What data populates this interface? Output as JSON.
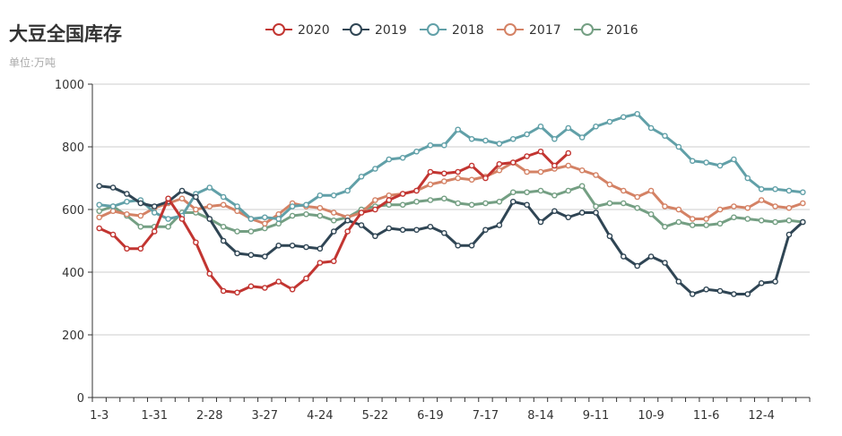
{
  "chart_data": {
    "type": "line",
    "title": "大豆全国库存",
    "subtitle": "单位:万吨",
    "ylim": [
      0,
      1000
    ],
    "yticks": [
      0,
      200,
      400,
      600,
      800,
      1000
    ],
    "x_labels": [
      "1-3",
      "1-31",
      "2-28",
      "3-27",
      "4-24",
      "5-22",
      "6-19",
      "7-17",
      "8-14",
      "9-11",
      "10-9",
      "11-6",
      "12-4"
    ],
    "x_count": 52,
    "grid": "horizontal",
    "legend_placement": "top-center",
    "series": [
      {
        "name": "2020",
        "color": "#c23531",
        "values": [
          540,
          520,
          475,
          475,
          530,
          635,
          570,
          495,
          395,
          340,
          335,
          355,
          350,
          370,
          345,
          380,
          430,
          435,
          530,
          590,
          600,
          630,
          650,
          660,
          720,
          715,
          720,
          740,
          700,
          745,
          750,
          770,
          785,
          740,
          780
        ]
      },
      {
        "name": "2019",
        "color": "#2f4554",
        "values": [
          675,
          670,
          650,
          620,
          610,
          625,
          660,
          640,
          570,
          500,
          460,
          455,
          450,
          485,
          485,
          480,
          475,
          530,
          565,
          550,
          515,
          540,
          535,
          535,
          545,
          525,
          485,
          485,
          535,
          550,
          625,
          615,
          560,
          595,
          575,
          590,
          590,
          515,
          450,
          420,
          450,
          430,
          370,
          330,
          345,
          340,
          330,
          330,
          365,
          370,
          520,
          560
        ]
      },
      {
        "name": "2018",
        "color": "#61a0a8",
        "values": [
          615,
          610,
          625,
          630,
          590,
          570,
          580,
          650,
          670,
          640,
          610,
          570,
          575,
          570,
          610,
          615,
          645,
          645,
          660,
          705,
          730,
          760,
          765,
          785,
          805,
          805,
          855,
          825,
          820,
          810,
          825,
          840,
          865,
          825,
          860,
          830,
          865,
          880,
          895,
          905,
          860,
          835,
          800,
          755,
          750,
          740,
          760,
          700,
          665,
          665,
          660,
          655
        ]
      },
      {
        "name": "2017",
        "color": "#d48265",
        "values": [
          575,
          595,
          585,
          580,
          605,
          620,
          635,
          600,
          610,
          615,
          595,
          570,
          555,
          585,
          620,
          610,
          605,
          590,
          575,
          590,
          630,
          645,
          650,
          660,
          680,
          690,
          700,
          695,
          705,
          725,
          750,
          720,
          720,
          730,
          740,
          725,
          710,
          680,
          660,
          640,
          660,
          610,
          600,
          570,
          570,
          600,
          610,
          605,
          630,
          610,
          605,
          620
        ]
      },
      {
        "name": "2016",
        "color": "#749f83",
        "values": [
          595,
          610,
          580,
          545,
          545,
          545,
          590,
          590,
          570,
          545,
          530,
          530,
          540,
          555,
          580,
          585,
          580,
          565,
          575,
          600,
          610,
          615,
          615,
          625,
          630,
          635,
          620,
          615,
          620,
          625,
          655,
          655,
          660,
          645,
          660,
          675,
          610,
          620,
          620,
          605,
          585,
          545,
          560,
          550,
          550,
          555,
          575,
          570,
          565,
          560,
          565,
          560
        ]
      }
    ]
  }
}
